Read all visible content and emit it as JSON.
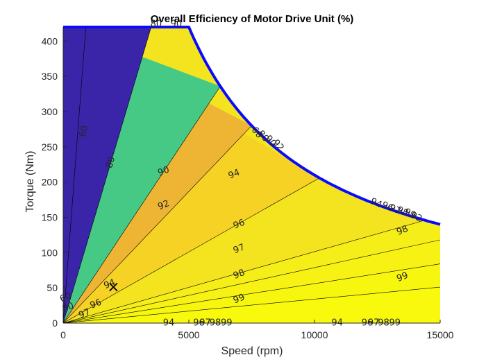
{
  "chart_data": {
    "type": "contour",
    "title": "Overall Efficiency of Motor Drive Unit (%)",
    "xlabel": "Speed (rpm)",
    "ylabel": "Torque (Nm)",
    "xlim": [
      0,
      15000
    ],
    "ylim": [
      0,
      420
    ],
    "xticks": [
      "0",
      "5000",
      "10000",
      "15000"
    ],
    "yticks": [
      "0",
      "50",
      "100",
      "150",
      "200",
      "250",
      "300",
      "350",
      "400"
    ],
    "grid": false,
    "legend": "none",
    "base_speed_rpm": 5000,
    "max_torque_nm": 420,
    "envelope": [
      [
        0,
        420
      ],
      [
        5000,
        420
      ],
      [
        5500,
        382
      ],
      [
        6000,
        350
      ],
      [
        7000,
        300
      ],
      [
        8000,
        262.5
      ],
      [
        9000,
        233
      ],
      [
        10000,
        210
      ],
      [
        11000,
        191
      ],
      [
        12000,
        175
      ],
      [
        13000,
        161.5
      ],
      [
        14000,
        150
      ],
      [
        15000,
        140
      ]
    ],
    "levels": [
      60,
      80,
      90,
      92,
      94,
      96,
      97,
      98,
      99
    ],
    "level_colors": [
      "#3a24a8",
      "#47c986",
      "#eeb534",
      "#f6d224",
      "#f4e41f",
      "#f6ee18",
      "#f7f214",
      "#f7f60f",
      "#f8f90c"
    ],
    "contour_labels": [
      {
        "text": "60",
        "x": 830,
        "y": 272
      },
      {
        "text": "80",
        "x": 1900,
        "y": 228
      },
      {
        "text": "90",
        "x": 4000,
        "y": 215
      },
      {
        "text": "92",
        "x": 4000,
        "y": 167
      },
      {
        "text": "94",
        "x": 6800,
        "y": 211
      },
      {
        "text": "96",
        "x": 7000,
        "y": 140
      },
      {
        "text": "97",
        "x": 7000,
        "y": 105
      },
      {
        "text": "98",
        "x": 7000,
        "y": 69
      },
      {
        "text": "99",
        "x": 7000,
        "y": 34
      },
      {
        "text": "94",
        "x": 1850,
        "y": 55
      },
      {
        "text": "96",
        "x": 1300,
        "y": 27
      },
      {
        "text": "97",
        "x": 850,
        "y": 13
      },
      {
        "text": "60",
        "x": 100,
        "y": 36
      },
      {
        "text": "80",
        "x": 200,
        "y": 22
      },
      {
        "text": "98",
        "x": 13500,
        "y": 131
      },
      {
        "text": "99",
        "x": 13500,
        "y": 65
      },
      {
        "text": "80",
        "x": 3700,
        "y": 424
      },
      {
        "text": "90",
        "x": 4500,
        "y": 424
      },
      {
        "text": "94",
        "x": 4200,
        "y": 0
      },
      {
        "text": "96",
        "x": 5400,
        "y": 0
      },
      {
        "text": "97",
        "x": 5650,
        "y": 0
      },
      {
        "text": "98",
        "x": 6050,
        "y": 0
      },
      {
        "text": "99",
        "x": 6500,
        "y": 0
      },
      {
        "text": "94",
        "x": 10900,
        "y": 0
      },
      {
        "text": "96",
        "x": 12100,
        "y": 0
      },
      {
        "text": "97",
        "x": 12350,
        "y": 0
      },
      {
        "text": "98",
        "x": 12750,
        "y": 0
      },
      {
        "text": "99",
        "x": 13200,
        "y": 0
      }
    ],
    "envelope_labels": [
      {
        "text": "60",
        "x": 7700,
        "y": 270
      },
      {
        "text": "80",
        "x": 7950,
        "y": 265
      },
      {
        "text": "90",
        "x": 8250,
        "y": 258
      },
      {
        "text": "92",
        "x": 8550,
        "y": 252
      },
      {
        "text": "94",
        "x": 12450,
        "y": 170
      },
      {
        "text": "96",
        "x": 12900,
        "y": 165
      },
      {
        "text": "97",
        "x": 13200,
        "y": 161
      },
      {
        "text": "98",
        "x": 13500,
        "y": 158
      },
      {
        "text": "99",
        "x": 13800,
        "y": 155
      },
      {
        "text": "92",
        "x": 14050,
        "y": 150
      }
    ],
    "markers": [
      {
        "symbol": "×",
        "x": 2000,
        "y": 50
      }
    ]
  }
}
